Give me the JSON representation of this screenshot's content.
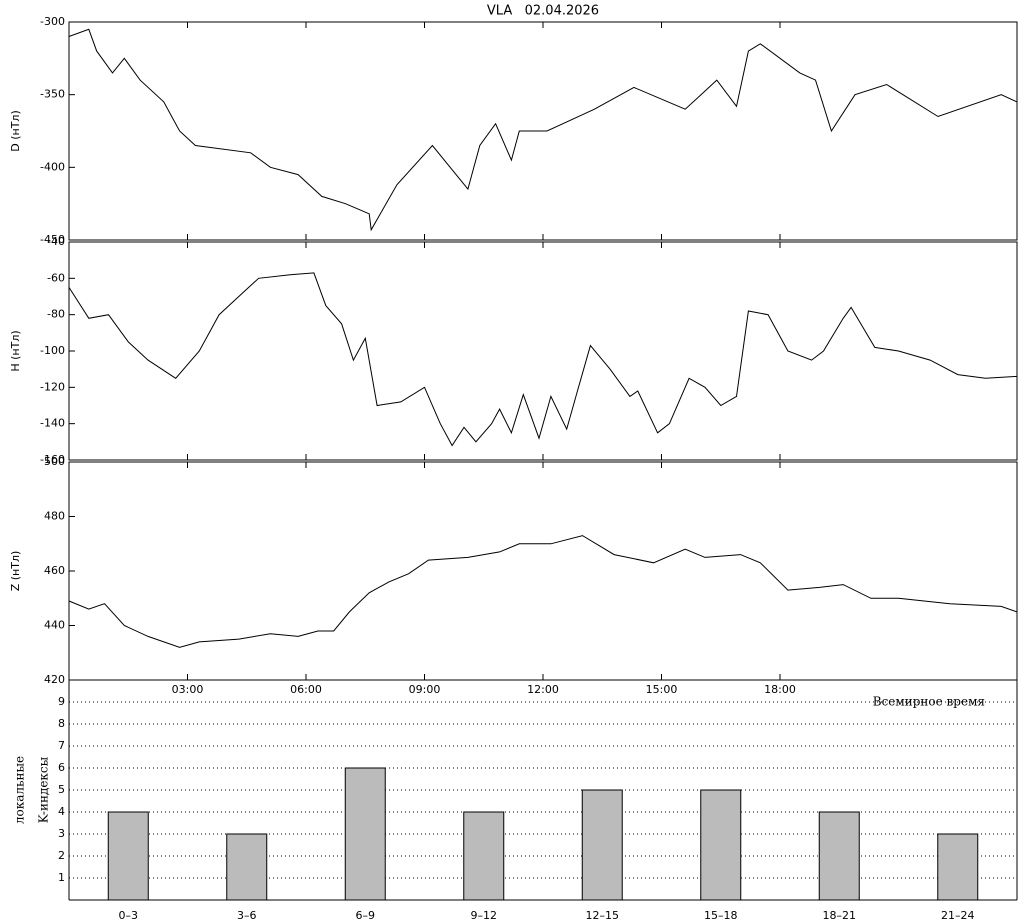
{
  "chart_data": [
    {
      "type": "line",
      "title": "VLA   02.04.2026",
      "ylabel": "D (нТл)",
      "x": [
        0,
        0.5,
        0.7,
        1.1,
        1.4,
        1.8,
        2.4,
        2.8,
        3.2,
        4.6,
        5.1,
        5.8,
        6.4,
        7.0,
        7.6,
        7.65,
        8.3,
        9.2,
        10.1,
        10.4,
        10.8,
        11.2,
        11.4,
        12.1,
        13.3,
        14.3,
        15.6,
        16.0,
        16.4,
        16.9,
        17.2,
        17.5,
        18.5,
        18.9,
        19.3,
        19.9,
        20.7,
        22.0,
        23.6,
        24
      ],
      "series": [
        {
          "color": "#000000",
          "values": [
            -310,
            -305,
            -320,
            -335,
            -325,
            -340,
            -355,
            -375,
            -385,
            -390,
            -400,
            -405,
            -420,
            -425,
            -432,
            -443,
            -412,
            -385,
            -415,
            -385,
            -370,
            -395,
            -375,
            -375,
            -360,
            -345,
            -360,
            -350,
            -340,
            -358,
            -320,
            -315,
            -335,
            -340,
            -375,
            -350,
            -343,
            -365,
            -350,
            -355
          ]
        }
      ],
      "xlim": [
        0,
        24
      ],
      "ylim": [
        -450,
        -300
      ],
      "yticks": [
        -300,
        -350,
        -400,
        -450
      ]
    },
    {
      "type": "line",
      "ylabel": "H (нТл)",
      "x": [
        0,
        0.5,
        1.0,
        1.5,
        2.0,
        2.7,
        3.3,
        3.8,
        4.3,
        4.8,
        5.6,
        6.2,
        6.5,
        6.9,
        7.2,
        7.5,
        7.8,
        8.4,
        9.0,
        9.4,
        9.7,
        10.0,
        10.3,
        10.7,
        10.9,
        11.2,
        11.5,
        11.9,
        12.2,
        12.6,
        12.9,
        13.2,
        13.7,
        14.2,
        14.4,
        14.9,
        15.2,
        15.7,
        16.1,
        16.5,
        16.9,
        17.2,
        17.7,
        18.2,
        18.8,
        19.1,
        19.6,
        19.8,
        20.4,
        21.0,
        21.8,
        22.5,
        23.2,
        24
      ],
      "series": [
        {
          "color": "#000000",
          "values": [
            -65,
            -82,
            -80,
            -95,
            -105,
            -115,
            -100,
            -80,
            -70,
            -60,
            -58,
            -57,
            -75,
            -85,
            -105,
            -93,
            -130,
            -128,
            -120,
            -140,
            -152,
            -142,
            -150,
            -140,
            -132,
            -145,
            -124,
            -148,
            -125,
            -143,
            -120,
            -97,
            -110,
            -125,
            -122,
            -145,
            -140,
            -115,
            -120,
            -130,
            -125,
            -78,
            -80,
            -100,
            -105,
            -100,
            -82,
            -76,
            -98,
            -100,
            -105,
            -113,
            -115,
            -114
          ]
        }
      ],
      "xlim": [
        0,
        24
      ],
      "ylim": [
        -160,
        -40
      ],
      "yticks": [
        -40,
        -60,
        -80,
        -100,
        -120,
        -140,
        -160
      ]
    },
    {
      "type": "line",
      "ylabel": "Z (нТл)",
      "xlabel": "Всемирное время",
      "x": [
        0,
        0.5,
        0.9,
        1.4,
        2.0,
        2.8,
        3.3,
        4.3,
        5.1,
        5.8,
        6.3,
        6.7,
        7.1,
        7.6,
        8.1,
        8.6,
        9.1,
        10.1,
        10.9,
        11.4,
        12.2,
        13.0,
        13.8,
        14.8,
        15.6,
        16.1,
        17.0,
        17.5,
        18.2,
        19.0,
        19.6,
        20.3,
        21.0,
        22.3,
        23.6,
        24
      ],
      "series": [
        {
          "color": "#000000",
          "values": [
            449,
            446,
            448,
            440,
            436,
            432,
            434,
            435,
            437,
            436,
            438,
            438,
            445,
            452,
            456,
            459,
            464,
            465,
            467,
            470,
            470,
            473,
            466,
            463,
            468,
            465,
            466,
            463,
            453,
            454,
            455,
            450,
            450,
            448,
            447,
            445
          ]
        }
      ],
      "xlim": [
        0,
        24
      ],
      "ylim": [
        420,
        500
      ],
      "yticks": [
        420,
        440,
        460,
        480,
        500
      ],
      "xticks": [
        {
          "value": 3,
          "label": "03:00"
        },
        {
          "value": 6,
          "label": "06:00"
        },
        {
          "value": 9,
          "label": "09:00"
        },
        {
          "value": 12,
          "label": "12:00"
        },
        {
          "value": 15,
          "label": "15:00"
        },
        {
          "value": 18,
          "label": "18:00"
        }
      ]
    },
    {
      "type": "bar",
      "ylabel": [
        "локальные",
        "K-индексы"
      ],
      "categories": [
        "0–3",
        "3–6",
        "6–9",
        "9–12",
        "12–15",
        "15–18",
        "18–21",
        "21–24"
      ],
      "values": [
        4,
        3,
        6,
        4,
        5,
        5,
        4,
        3
      ],
      "color": "#bbbbbb",
      "ylim": [
        0,
        10
      ],
      "yticks": [
        1,
        2,
        3,
        4,
        5,
        6,
        7,
        8,
        9
      ],
      "grid": true
    }
  ]
}
